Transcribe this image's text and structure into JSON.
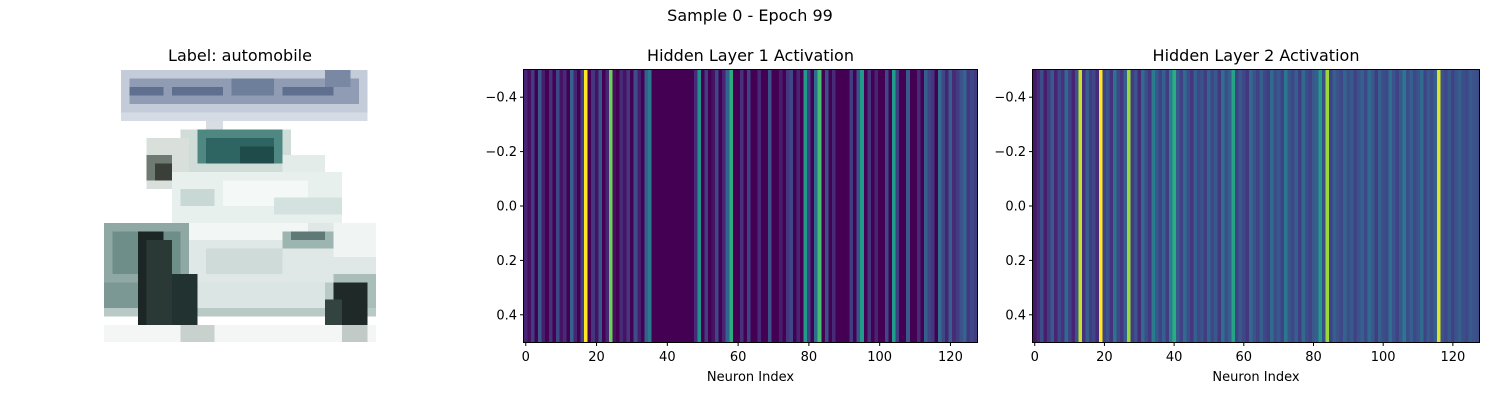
{
  "suptitle": "Sample 0 - Epoch 99",
  "image_panel": {
    "title": "Label: automobile"
  },
  "chart_data": [
    {
      "type": "heatmap",
      "title": "Hidden Layer 1 Activation",
      "xlabel": "Neuron Index",
      "ylabel": "",
      "colormap": "viridis",
      "xlim": [
        -0.5,
        127.5
      ],
      "ylim": [
        -0.5,
        0.5
      ],
      "x_ticks": [
        0,
        20,
        40,
        60,
        80,
        100,
        120
      ],
      "y_ticks": [
        -0.4,
        -0.2,
        0.0,
        0.2,
        0.4
      ],
      "y_tick_labels": [
        "−0.4",
        "−0.2",
        "0.0",
        "0.2",
        "0.4"
      ],
      "values": [
        0.1,
        0.04,
        0.18,
        0.0,
        0.28,
        0.08,
        0.0,
        0.14,
        0.0,
        0.22,
        0.05,
        0.12,
        0.0,
        0.32,
        0.1,
        0.0,
        0.2,
        1.0,
        0.0,
        0.15,
        0.05,
        0.26,
        0.0,
        0.1,
        0.78,
        0.04,
        0.0,
        0.12,
        0.05,
        0.16,
        0.0,
        0.24,
        0.08,
        0.0,
        0.3,
        0.4,
        0.0,
        0.0,
        0.0,
        0.0,
        0.0,
        0.0,
        0.0,
        0.0,
        0.0,
        0.0,
        0.0,
        0.0,
        0.12,
        0.5,
        0.0,
        0.18,
        0.0,
        0.05,
        0.22,
        0.0,
        0.1,
        0.32,
        0.62,
        0.0,
        0.0,
        0.14,
        0.0,
        0.2,
        0.0,
        0.0,
        0.12,
        0.0,
        0.0,
        0.25,
        0.0,
        0.0,
        0.08,
        0.0,
        0.16,
        0.22,
        0.0,
        0.1,
        0.0,
        0.55,
        0.2,
        0.0,
        0.35,
        0.7,
        0.0,
        0.24,
        0.0,
        0.12,
        0.0,
        0.0,
        0.0,
        0.0,
        0.18,
        0.0,
        0.26,
        0.55,
        0.0,
        0.15,
        0.0,
        0.1,
        0.0,
        0.0,
        0.22,
        0.0,
        0.55,
        0.18,
        0.0,
        0.0,
        0.28,
        0.0,
        0.0,
        0.12,
        0.0,
        0.3,
        0.2,
        0.16,
        0.0,
        0.35,
        0.22,
        0.1,
        0.3,
        0.12,
        0.18,
        0.26,
        0.32,
        0.16,
        0.22,
        0.18
      ]
    },
    {
      "type": "heatmap",
      "title": "Hidden Layer 2 Activation",
      "xlabel": "Neuron Index",
      "ylabel": "",
      "colormap": "viridis",
      "xlim": [
        -0.5,
        127.5
      ],
      "ylim": [
        -0.5,
        0.5
      ],
      "x_ticks": [
        0,
        20,
        40,
        60,
        80,
        100,
        120
      ],
      "y_ticks": [
        -0.4,
        -0.2,
        0.0,
        0.2,
        0.4
      ],
      "y_tick_labels": [
        "−0.4",
        "−0.2",
        "0.0",
        "0.2",
        "0.4"
      ],
      "values": [
        0.06,
        0.12,
        0.24,
        0.08,
        0.18,
        0.28,
        0.1,
        0.22,
        0.14,
        0.34,
        0.2,
        0.1,
        0.26,
        0.92,
        0.14,
        0.3,
        0.18,
        0.22,
        0.12,
        1.0,
        0.2,
        0.26,
        0.14,
        0.38,
        0.22,
        0.16,
        0.3,
        0.85,
        0.18,
        0.26,
        0.12,
        0.34,
        0.24,
        0.16,
        0.42,
        0.28,
        0.2,
        0.3,
        0.18,
        0.44,
        0.62,
        0.28,
        0.2,
        0.34,
        0.24,
        0.16,
        0.3,
        0.22,
        0.26,
        0.18,
        0.32,
        0.22,
        0.28,
        0.16,
        0.36,
        0.24,
        0.3,
        0.58,
        0.2,
        0.28,
        0.22,
        0.16,
        0.34,
        0.26,
        0.2,
        0.3,
        0.22,
        0.18,
        0.34,
        0.24,
        0.28,
        0.2,
        0.4,
        0.26,
        0.22,
        0.3,
        0.18,
        0.34,
        0.24,
        0.2,
        0.28,
        0.3,
        0.55,
        0.24,
        0.85,
        0.2,
        0.3,
        0.26,
        0.22,
        0.32,
        0.24,
        0.28,
        0.2,
        0.26,
        0.3,
        0.22,
        0.34,
        0.28,
        0.18,
        0.3,
        0.24,
        0.22,
        0.36,
        0.26,
        0.2,
        0.28,
        0.4,
        0.24,
        0.3,
        0.22,
        0.26,
        0.34,
        0.2,
        0.28,
        0.24,
        0.3,
        0.95,
        0.26,
        0.22,
        0.28,
        0.2,
        0.26,
        0.3,
        0.24,
        0.22,
        0.28,
        0.26,
        0.24
      ]
    }
  ]
}
